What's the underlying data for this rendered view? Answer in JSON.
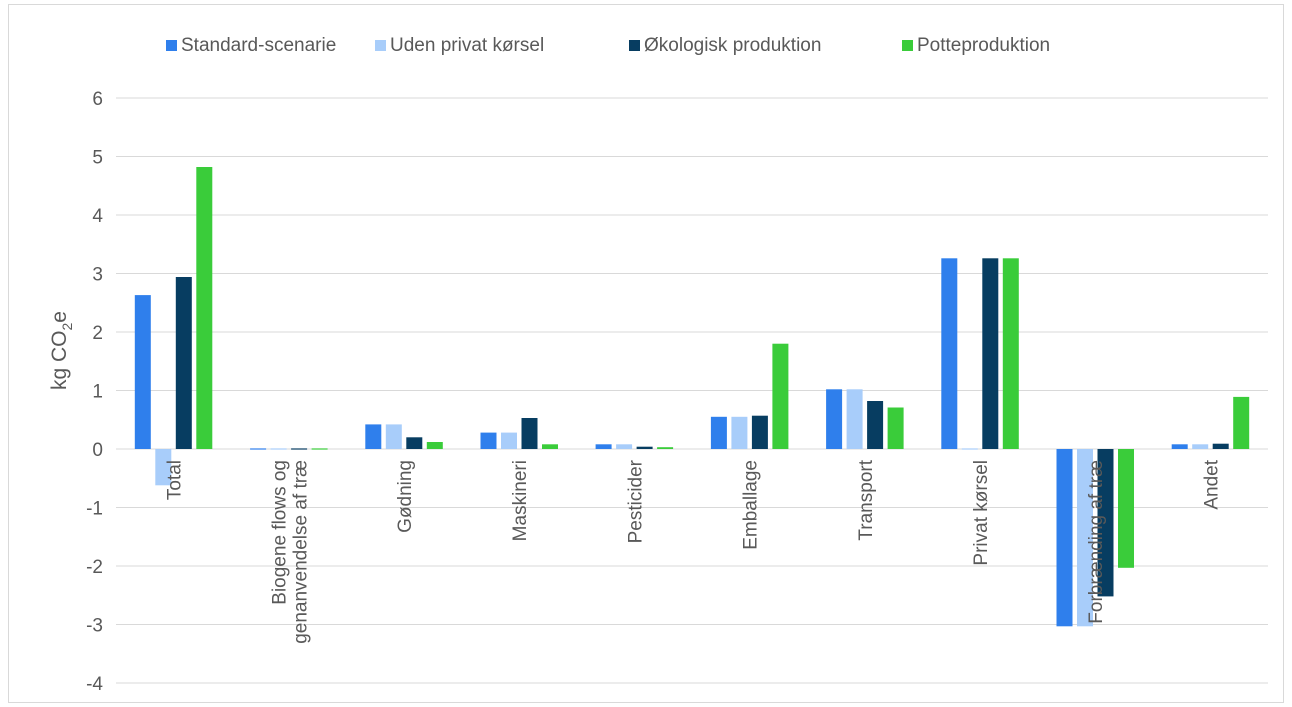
{
  "chart_data": {
    "type": "bar",
    "ylabel": "kg CO",
    "ylabel_sub": "2",
    "ylabel_suffix": "e",
    "ylim": [
      -4,
      6
    ],
    "yticks": [
      "-4",
      "-3",
      "-2",
      "-1",
      "0",
      "1",
      "2",
      "3",
      "4",
      "5",
      "6"
    ],
    "grid": true,
    "legend_position": "top",
    "categories": [
      [
        "Total"
      ],
      [
        "Biogene flows og",
        "genanvendelse af træ"
      ],
      [
        "Gødning"
      ],
      [
        "Maskineri"
      ],
      [
        "Pesticider"
      ],
      [
        "Emballage"
      ],
      [
        "Transport"
      ],
      [
        "Privat kørsel"
      ],
      [
        "Forbrænding af træ"
      ],
      [
        "Andet"
      ]
    ],
    "series": [
      {
        "name": "Standard-scenarie",
        "color": "#2f7fec",
        "values": [
          2.63,
          -0.01,
          0.42,
          0.28,
          0.08,
          0.55,
          1.02,
          3.26,
          -3.03,
          0.08
        ]
      },
      {
        "name": "Uden privat kørsel",
        "color": "#a8cdfa",
        "values": [
          -0.62,
          -0.01,
          0.42,
          0.28,
          0.08,
          0.55,
          1.02,
          0.0,
          -3.03,
          0.08
        ]
      },
      {
        "name": "Økologisk produktion",
        "color": "#073d61",
        "values": [
          2.94,
          -0.01,
          0.2,
          0.53,
          0.04,
          0.57,
          0.82,
          3.26,
          -2.52,
          0.09
        ]
      },
      {
        "name": "Potteproduktion",
        "color": "#3acc3a",
        "values": [
          4.82,
          -0.01,
          0.12,
          0.08,
          0.03,
          1.8,
          0.71,
          3.26,
          -2.03,
          0.89
        ]
      }
    ]
  }
}
